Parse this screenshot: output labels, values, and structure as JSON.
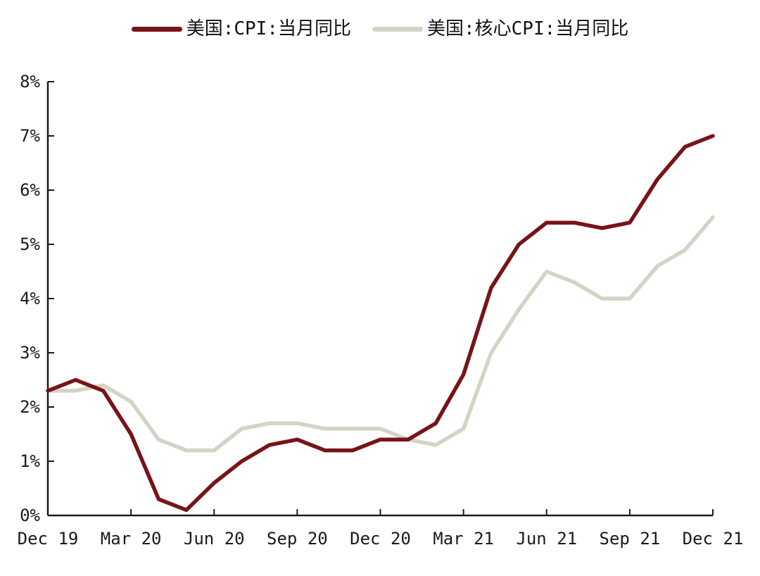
{
  "legend": {
    "items": [
      {
        "label": "美国:CPI:当月同比"
      },
      {
        "label": "美国:核心CPI:当月同比"
      }
    ]
  },
  "colors": {
    "cpi_line": "#771419",
    "core_cpi_line": "#D4D3C5",
    "axis": "#1a1a1a",
    "tick_label": "#1a1a1a"
  },
  "chart_data": {
    "type": "line",
    "title": "",
    "xlabel": "",
    "ylabel": "",
    "unit": "%",
    "ylim": [
      0,
      8
    ],
    "grid": false,
    "legend_position": "top-center",
    "x": [
      "Dec 19",
      "Jan 20",
      "Feb 20",
      "Mar 20",
      "Apr 20",
      "May 20",
      "Jun 20",
      "Jul 20",
      "Aug 20",
      "Sep 20",
      "Oct 20",
      "Nov 20",
      "Dec 20",
      "Jan 21",
      "Feb 21",
      "Mar 21",
      "Apr 21",
      "May 21",
      "Jun 21",
      "Jul 21",
      "Aug 21",
      "Sep 21",
      "Oct 21",
      "Nov 21",
      "Dec 21"
    ],
    "x_tick_labels": [
      "Dec 19",
      "Mar 20",
      "Jun 20",
      "Sep 20",
      "Dec 20",
      "Mar 21",
      "Jun 21",
      "Sep 21",
      "Dec 21"
    ],
    "y_tick_labels": [
      "0%",
      "1%",
      "2%",
      "3%",
      "4%",
      "5%",
      "6%",
      "7%",
      "8%"
    ],
    "series": [
      {
        "name": "美国:CPI:当月同比",
        "key": "cpi-line",
        "color": "#771419",
        "values": [
          2.3,
          2.5,
          2.3,
          1.5,
          0.3,
          0.1,
          0.6,
          1.0,
          1.3,
          1.4,
          1.2,
          1.2,
          1.4,
          1.4,
          1.7,
          2.6,
          4.2,
          5.0,
          5.4,
          5.4,
          5.3,
          5.4,
          6.2,
          6.8,
          7.0
        ]
      },
      {
        "name": "美国:核心CPI:当月同比",
        "key": "core-cpi-line",
        "color": "#D4D3C5",
        "values": [
          2.3,
          2.3,
          2.4,
          2.1,
          1.4,
          1.2,
          1.2,
          1.6,
          1.7,
          1.7,
          1.6,
          1.6,
          1.6,
          1.4,
          1.3,
          1.6,
          3.0,
          3.8,
          4.5,
          4.3,
          4.0,
          4.0,
          4.6,
          4.9,
          5.5
        ]
      }
    ]
  }
}
